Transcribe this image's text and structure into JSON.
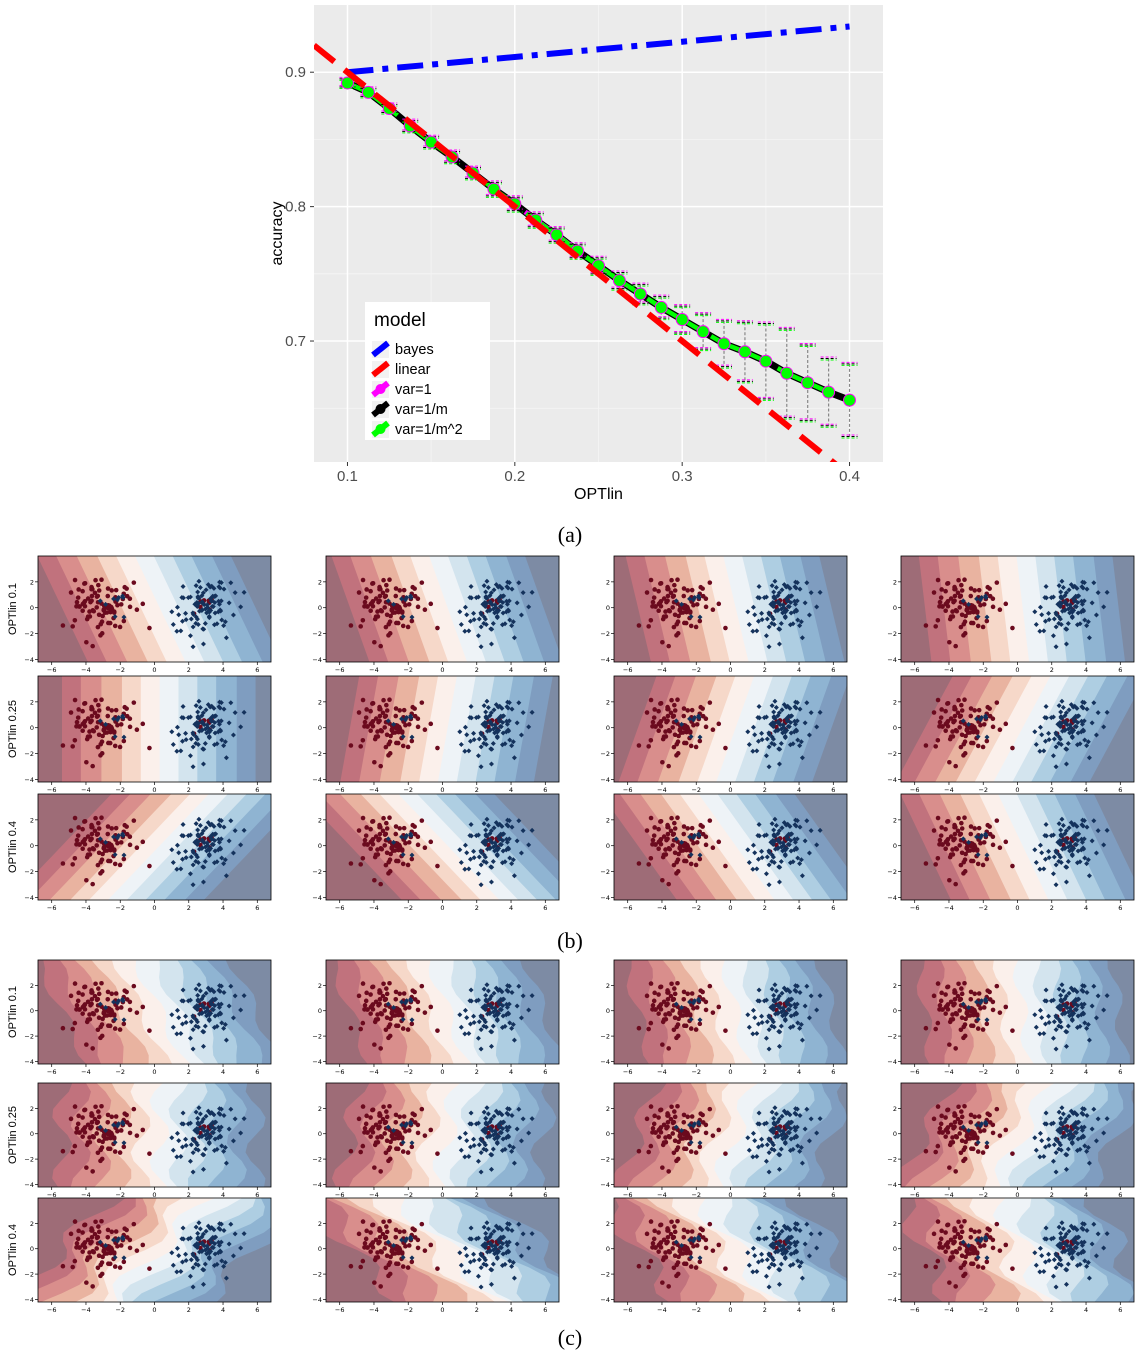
{
  "chart_data": [
    {
      "type": "line",
      "panel_label": "(a)",
      "xlabel": "OPTlin",
      "ylabel": "accuracy",
      "xlim": [
        0.08,
        0.42
      ],
      "ylim": [
        0.61,
        0.95
      ],
      "x_ticks": [
        0.1,
        0.2,
        0.3,
        0.4
      ],
      "x_tick_labels": [
        "0.1",
        "0.2",
        "0.3",
        "0.4"
      ],
      "y_ticks": [
        0.7,
        0.8,
        0.9
      ],
      "y_tick_labels": [
        "0.7",
        "0.8",
        "0.9"
      ],
      "grid": true,
      "legend": {
        "title": "model",
        "placement": "bottom-left"
      },
      "series": [
        {
          "name": "bayes",
          "color": "#0000ff",
          "style": "dashdot",
          "x": [
            0.1,
            0.4
          ],
          "y": [
            0.9,
            0.934
          ]
        },
        {
          "name": "linear",
          "color": "#ff0000",
          "style": "dashed",
          "x": [
            0.08,
            0.4
          ],
          "y": [
            0.92,
            0.6
          ]
        },
        {
          "name": "var=1",
          "color": "#ff00ff",
          "style": "solid",
          "x": [
            0.1,
            0.1125,
            0.125,
            0.1375,
            0.15,
            0.1625,
            0.175,
            0.1875,
            0.2,
            0.2125,
            0.225,
            0.2375,
            0.25,
            0.2625,
            0.275,
            0.2875,
            0.3,
            0.3125,
            0.325,
            0.3375,
            0.35,
            0.3625,
            0.375,
            0.3875,
            0.4
          ],
          "y": [
            0.892,
            0.885,
            0.873,
            0.86,
            0.848,
            0.837,
            0.825,
            0.813,
            0.802,
            0.79,
            0.779,
            0.767,
            0.756,
            0.745,
            0.735,
            0.725,
            0.716,
            0.707,
            0.698,
            0.692,
            0.685,
            0.676,
            0.669,
            0.662,
            0.656
          ],
          "err": [
            0.003,
            0.003,
            0.003,
            0.004,
            0.004,
            0.004,
            0.004,
            0.005,
            0.005,
            0.005,
            0.005,
            0.005,
            0.006,
            0.006,
            0.007,
            0.008,
            0.01,
            0.013,
            0.017,
            0.022,
            0.028,
            0.033,
            0.028,
            0.025,
            0.027
          ]
        },
        {
          "name": "var=1/m",
          "color": "#000000",
          "style": "solid",
          "x": [
            0.1,
            0.1125,
            0.125,
            0.1375,
            0.15,
            0.1625,
            0.175,
            0.1875,
            0.2,
            0.2125,
            0.225,
            0.2375,
            0.25,
            0.2625,
            0.275,
            0.2875,
            0.3,
            0.3125,
            0.325,
            0.3375,
            0.35,
            0.3625,
            0.375,
            0.3875,
            0.4
          ],
          "y": [
            0.892,
            0.885,
            0.873,
            0.86,
            0.848,
            0.837,
            0.825,
            0.813,
            0.802,
            0.79,
            0.779,
            0.767,
            0.756,
            0.745,
            0.735,
            0.725,
            0.716,
            0.707,
            0.698,
            0.692,
            0.685,
            0.676,
            0.669,
            0.662,
            0.656
          ],
          "err": [
            0.003,
            0.003,
            0.003,
            0.004,
            0.004,
            0.004,
            0.004,
            0.005,
            0.005,
            0.005,
            0.005,
            0.005,
            0.006,
            0.006,
            0.007,
            0.008,
            0.01,
            0.013,
            0.017,
            0.022,
            0.028,
            0.033,
            0.028,
            0.025,
            0.027
          ]
        },
        {
          "name": "var=1/m^2",
          "color": "#00ff00",
          "style": "solid",
          "x": [
            0.1,
            0.1125,
            0.125,
            0.1375,
            0.15,
            0.1625,
            0.175,
            0.1875,
            0.2,
            0.2125,
            0.225,
            0.2375,
            0.25,
            0.2625,
            0.275,
            0.2875,
            0.3,
            0.3125,
            0.325,
            0.3375,
            0.35,
            0.3625,
            0.375,
            0.3875,
            0.4
          ],
          "y": [
            0.892,
            0.885,
            0.873,
            0.86,
            0.848,
            0.837,
            0.825,
            0.813,
            0.802,
            0.79,
            0.779,
            0.767,
            0.756,
            0.745,
            0.735,
            0.725,
            0.716,
            0.707,
            0.698,
            0.692,
            0.685,
            0.676,
            0.669,
            0.662,
            0.656
          ],
          "err": [
            0.003,
            0.003,
            0.003,
            0.004,
            0.004,
            0.004,
            0.004,
            0.005,
            0.005,
            0.005,
            0.005,
            0.005,
            0.006,
            0.006,
            0.007,
            0.008,
            0.01,
            0.013,
            0.017,
            0.022,
            0.028,
            0.033,
            0.028,
            0.025,
            0.027
          ]
        }
      ]
    },
    {
      "type": "scatter",
      "panel_label": "(b)",
      "grid_rows": 3,
      "grid_cols": 4,
      "row_labels": [
        "OPTlin 0.1",
        "OPTlin 0.25",
        "OPTlin 0.4"
      ],
      "xlim": [
        -6.8,
        6.8
      ],
      "ylim": [
        -4.2,
        4
      ],
      "x_ticks": [
        -6,
        -4,
        -2,
        0,
        2,
        4,
        6
      ],
      "x_tick_labels": [
        "−6",
        "−4",
        "−2",
        "0",
        "2",
        "4",
        "6"
      ],
      "y_ticks": [
        -4,
        -2,
        0,
        2
      ],
      "y_tick_labels": [
        "−4",
        "−2",
        "0",
        "2"
      ],
      "class_colors": {
        "class_0": "#6b0a1e",
        "class_1": "#14325c"
      },
      "background": "decision contour, red (left) to blue (right)"
    },
    {
      "type": "scatter",
      "panel_label": "(c)",
      "grid_rows": 3,
      "grid_cols": 4,
      "row_labels": [
        "OPTlin 0.1",
        "OPTlin 0.25",
        "OPTlin 0.4"
      ],
      "xlim": [
        -6.8,
        6.8
      ],
      "ylim": [
        -4.2,
        4
      ],
      "x_ticks": [
        -6,
        -4,
        -2,
        0,
        2,
        4,
        6
      ],
      "x_tick_labels": [
        "−6",
        "−4",
        "−2",
        "0",
        "2",
        "4",
        "6"
      ],
      "y_ticks": [
        -4,
        -2,
        0,
        2
      ],
      "y_tick_labels": [
        "−4",
        "−2",
        "0",
        "2"
      ],
      "class_colors": {
        "class_0": "#6b0a1e",
        "class_1": "#14325c"
      },
      "background": "decision contour, red (left) to blue (right)"
    }
  ]
}
